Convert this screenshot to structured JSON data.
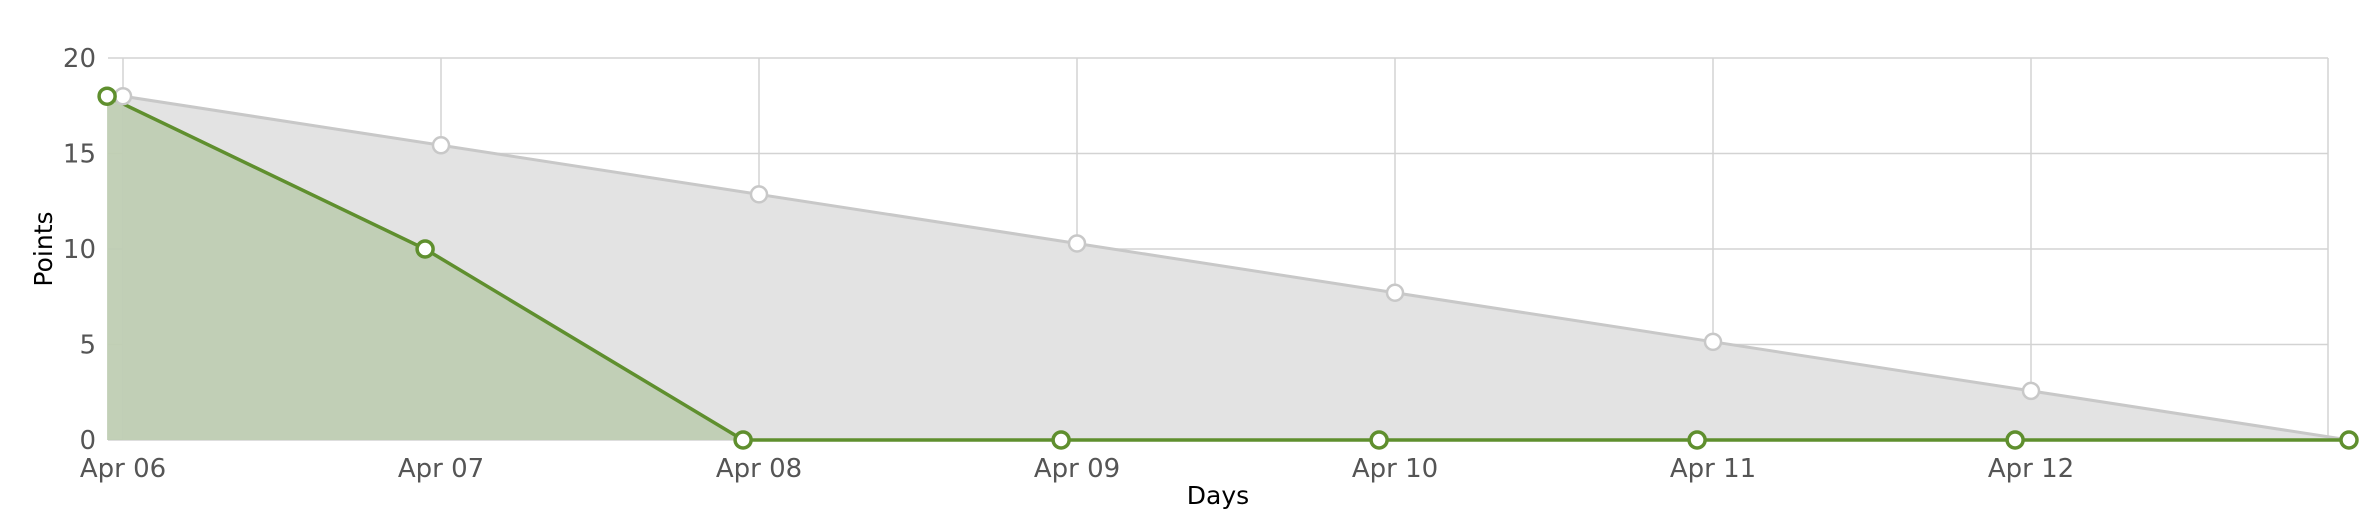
{
  "chart_data": {
    "type": "line",
    "xlabel": "Days",
    "ylabel": "Points",
    "ylim": [
      0,
      20
    ],
    "yticks": [
      0,
      5,
      10,
      15,
      20
    ],
    "x_tick_labels": [
      "Apr 06",
      "Apr 07",
      "Apr 08",
      "Apr 09",
      "Apr 10",
      "Apr 11",
      "Apr 12"
    ],
    "grid": true,
    "series": [
      {
        "role": "ideal",
        "color": "#c8c8c8",
        "fill": "#e3e3e3",
        "x": [
          0.0,
          1.0,
          2.0,
          3.0,
          4.0,
          5.0,
          6.0,
          7.0
        ],
        "values": [
          18,
          15.43,
          12.86,
          10.29,
          7.71,
          5.14,
          2.57,
          0
        ]
      },
      {
        "role": "actual",
        "color": "#5f8f2e",
        "fill": "#bfcdb3",
        "x": [
          -0.05,
          0.95,
          1.95,
          2.95,
          3.95,
          4.95,
          5.95,
          7.0
        ],
        "values": [
          18,
          10,
          0,
          0,
          0,
          0,
          0,
          0
        ]
      }
    ]
  }
}
